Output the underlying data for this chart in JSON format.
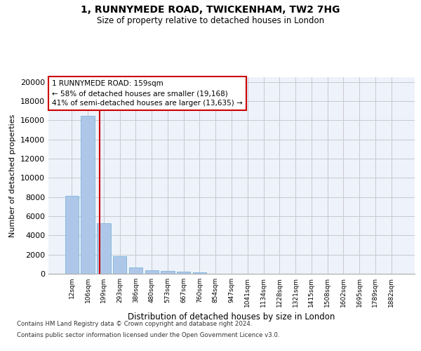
{
  "title_line1": "1, RUNNYMEDE ROAD, TWICKENHAM, TW2 7HG",
  "title_line2": "Size of property relative to detached houses in London",
  "xlabel": "Distribution of detached houses by size in London",
  "ylabel": "Number of detached properties",
  "categories": [
    "12sqm",
    "106sqm",
    "199sqm",
    "293sqm",
    "386sqm",
    "480sqm",
    "573sqm",
    "667sqm",
    "760sqm",
    "854sqm",
    "947sqm",
    "1041sqm",
    "1134sqm",
    "1228sqm",
    "1321sqm",
    "1415sqm",
    "1508sqm",
    "1602sqm",
    "1695sqm",
    "1789sqm",
    "1882sqm"
  ],
  "values": [
    8100,
    16500,
    5300,
    1800,
    650,
    350,
    270,
    190,
    150,
    0,
    0,
    0,
    0,
    0,
    0,
    0,
    0,
    0,
    0,
    0,
    0
  ],
  "bar_color": "#aec7e8",
  "bar_edge_color": "#6baed6",
  "vline_x": 1.72,
  "vline_color": "#cc0000",
  "annotation_text": "1 RUNNYMEDE ROAD: 159sqm\n← 58% of detached houses are smaller (19,168)\n41% of semi-detached houses are larger (13,635) →",
  "annotation_box_color": "#cc0000",
  "ylim": [
    0,
    20500
  ],
  "yticks": [
    0,
    2000,
    4000,
    6000,
    8000,
    10000,
    12000,
    14000,
    16000,
    18000,
    20000
  ],
  "grid_color": "#c8c8d0",
  "background_color": "#eef2fa",
  "footer_line1": "Contains HM Land Registry data © Crown copyright and database right 2024.",
  "footer_line2": "Contains public sector information licensed under the Open Government Licence v3.0."
}
